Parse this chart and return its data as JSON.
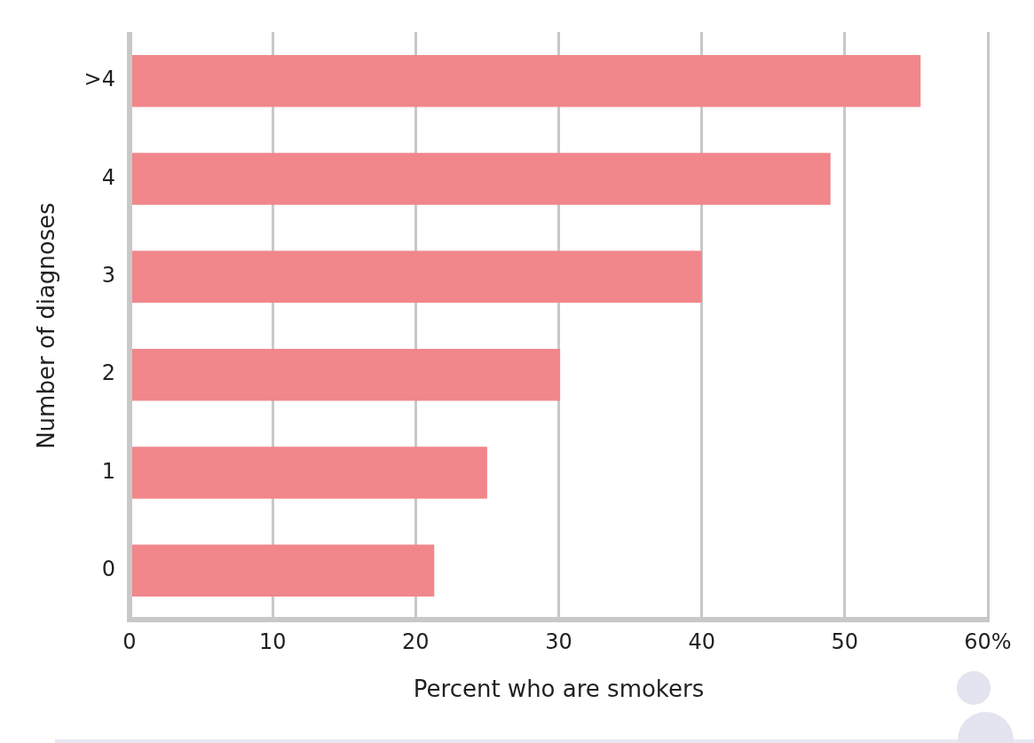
{
  "chart_data": {
    "type": "bar",
    "orientation": "horizontal",
    "categories": [
      ">4",
      "4",
      "3",
      "2",
      "1",
      "0"
    ],
    "values": [
      55.3,
      49,
      40,
      30.1,
      25,
      21.3
    ],
    "color": "#f1868b",
    "xlim": [
      0,
      60
    ],
    "xticks": [
      0,
      10,
      20,
      30,
      40,
      50,
      {
        "value": 60,
        "label": "60%"
      }
    ],
    "xlabel": "Percent who are smokers",
    "ylabel": "Number of diagnoses",
    "grid": "x"
  }
}
